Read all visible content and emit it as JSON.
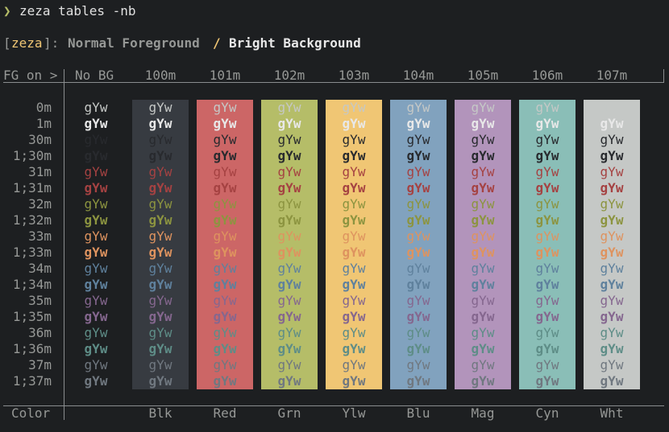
{
  "prompt": {
    "symbol": "❯",
    "command": "zeza tables -nb"
  },
  "title": {
    "open_bracket": "[",
    "app": "zeza",
    "close_bracket": "]:",
    "part1": "Normal Foreground",
    "separator": "/",
    "part2": "Bright Background"
  },
  "header": {
    "corner": "FG on >",
    "nobg": "No BG",
    "columns": [
      "100m",
      "101m",
      "102m",
      "103m",
      "104m",
      "105m",
      "106m",
      "107m"
    ]
  },
  "footer": {
    "corner": "Color",
    "columns": [
      "Blk",
      "Red",
      "Grn",
      "Ylw",
      "Blu",
      "Mag",
      "Cyn",
      "Wht"
    ]
  },
  "sample_text": "gYw",
  "rows": [
    {
      "label": "0m",
      "color": "#c5c8c6",
      "bold": false
    },
    {
      "label": "1m",
      "color": "#e8e8e8",
      "bold": true
    },
    {
      "label": "30m",
      "color": "#282a2e",
      "bold": false
    },
    {
      "label": "1;30m",
      "color": "#282a2e",
      "bold": true
    },
    {
      "label": "31m",
      "color": "#a54242",
      "bold": false
    },
    {
      "label": "1;31m",
      "color": "#a54242",
      "bold": true
    },
    {
      "label": "32m",
      "color": "#8c9440",
      "bold": false
    },
    {
      "label": "1;32m",
      "color": "#8c9440",
      "bold": true
    },
    {
      "label": "33m",
      "color": "#de935f",
      "bold": false
    },
    {
      "label": "1;33m",
      "color": "#de935f",
      "bold": true
    },
    {
      "label": "34m",
      "color": "#5f819d",
      "bold": false
    },
    {
      "label": "1;34m",
      "color": "#5f819d",
      "bold": true
    },
    {
      "label": "35m",
      "color": "#85678f",
      "bold": false
    },
    {
      "label": "1;35m",
      "color": "#85678f",
      "bold": true
    },
    {
      "label": "36m",
      "color": "#5e8d87",
      "bold": false
    },
    {
      "label": "1;36m",
      "color": "#5e8d87",
      "bold": true
    },
    {
      "label": "37m",
      "color": "#707880",
      "bold": false
    },
    {
      "label": "1;37m",
      "color": "#707880",
      "bold": true
    }
  ],
  "backgrounds": [
    "#373b41",
    "#cc6666",
    "#b5bd68",
    "#f0c674",
    "#81a2be",
    "#b294bb",
    "#8abeb7",
    "#c5c8c6"
  ],
  "colors": {
    "prompt_symbol": "#b5bd68",
    "app_name": "#f0c674",
    "bracket": "#969896",
    "title_part1": "#969896",
    "title_sep": "#f0c674",
    "title_part2": "#e8e8e8",
    "rule": "#8a8d8f"
  }
}
